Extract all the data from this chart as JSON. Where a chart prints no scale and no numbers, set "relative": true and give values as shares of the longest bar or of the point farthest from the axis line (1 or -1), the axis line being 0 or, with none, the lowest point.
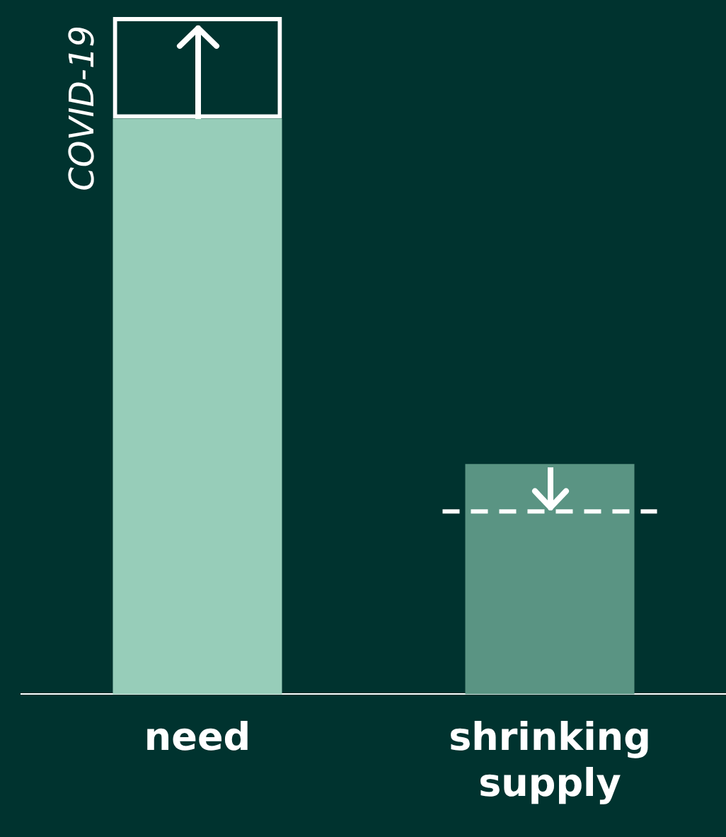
{
  "chart_data": {
    "type": "bar",
    "relative": true,
    "stacked": true,
    "categories": [
      "need",
      "shrinking supply"
    ],
    "series": [
      {
        "colors": [
          "#97cdb9",
          "#5a9483"
        ],
        "values": [
          0.85,
          0.34
        ]
      },
      {
        "color": "#ffffff",
        "values": [
          0.15,
          null
        ]
      }
    ],
    "ref_lines": [
      {
        "axis": "y",
        "value": 0.27,
        "color": "#ffffff",
        "line_style": "dashed"
      }
    ],
    "annotations": [
      "COVID-19"
    ],
    "legend": false,
    "grid": false
  }
}
